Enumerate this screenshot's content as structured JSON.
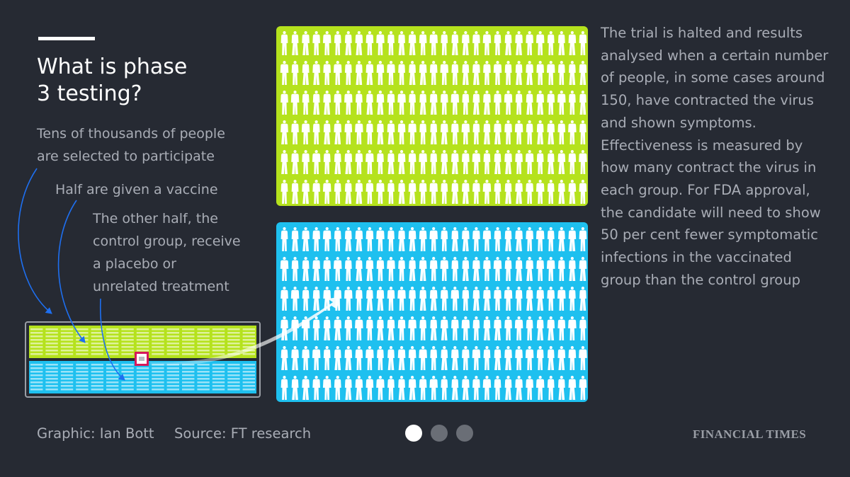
{
  "title": {
    "line1": "What is phase",
    "line2": "3 testing?"
  },
  "labels": {
    "tens": [
      "Tens of thousands of people",
      "are selected to participate"
    ],
    "half": [
      "Half are given a vaccine"
    ],
    "other": [
      "The other half, the",
      "control group, receive",
      "a placebo or",
      "unrelated treatment"
    ]
  },
  "annotation": [
    "The trial is halted and results",
    "analysed when a certain number",
    "of people, in some cases around",
    "150, have contracted the virus",
    "and shown symptoms.",
    "Effectiveness is measured by",
    "how many contract the virus in",
    "each group. For FDA approval,",
    "the candidate will need to show",
    "50 per cent fewer symptomatic",
    "infections in the vaccinated",
    "group than the control group"
  ],
  "groups": {
    "vaccine": {
      "color": "#b5e21d"
    },
    "control": {
      "color": "#1ec0ef"
    }
  },
  "colors": {
    "background": "#262a33",
    "text": "#a9adb6",
    "arrow": "#1e6ff0",
    "highlight": "#d6185a"
  },
  "footer": {
    "credit": "Graphic: Ian Bott",
    "source": "Source: FT research",
    "brand": "FINANCIAL TIMES"
  },
  "pagination": {
    "total": 3,
    "current": 1
  },
  "icons": {
    "figure": "person-figure-icon"
  }
}
